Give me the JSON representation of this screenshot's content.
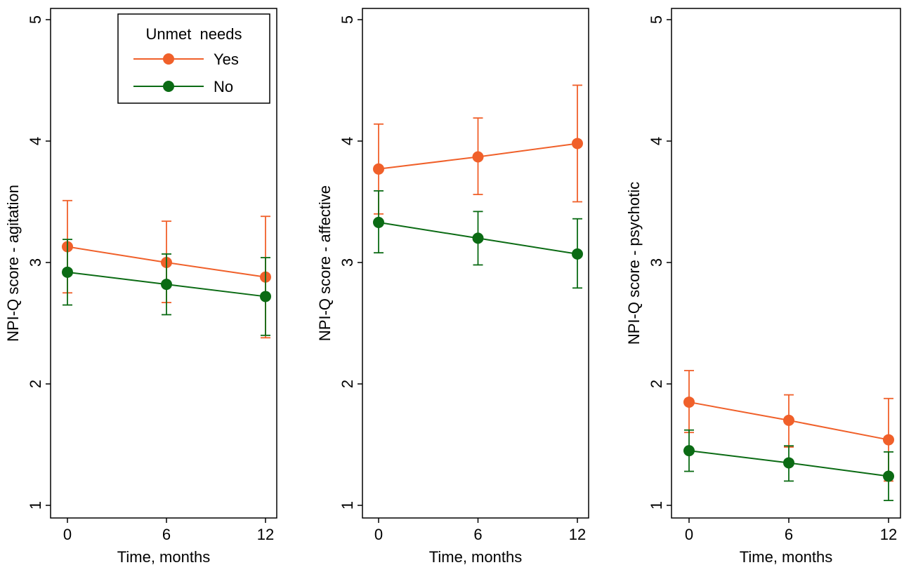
{
  "colors": {
    "yes": "#f0602a",
    "no": "#0b6b14",
    "axis": "#000000"
  },
  "legend": {
    "title": "Unmet  needs",
    "items": [
      {
        "label": "Yes",
        "series": "Yes"
      },
      {
        "label": "No",
        "series": "No"
      }
    ],
    "placement": "top-right of first panel"
  },
  "chart_data": [
    {
      "type": "line",
      "ylabel": "NPI-Q score - agitation",
      "xlabel": "Time, months",
      "x": [
        0,
        6,
        12
      ],
      "xticks": [
        "0",
        "6",
        "12"
      ],
      "yticks": [
        "1",
        "2",
        "3",
        "4",
        "5"
      ],
      "xlim": [
        0,
        12
      ],
      "ylim": [
        1,
        5
      ],
      "grid": false,
      "series": [
        {
          "name": "Yes",
          "values": [
            3.13,
            3.0,
            2.88
          ],
          "lower": [
            2.75,
            2.67,
            2.38
          ],
          "upper": [
            3.51,
            3.34,
            3.38
          ]
        },
        {
          "name": "No",
          "values": [
            2.92,
            2.82,
            2.72
          ],
          "lower": [
            2.65,
            2.57,
            2.4
          ],
          "upper": [
            3.19,
            3.07,
            3.04
          ]
        }
      ]
    },
    {
      "type": "line",
      "ylabel": "NPI-Q score - affective",
      "xlabel": "Time, months",
      "x": [
        0,
        6,
        12
      ],
      "xticks": [
        "0",
        "6",
        "12"
      ],
      "yticks": [
        "1",
        "2",
        "3",
        "4",
        "5"
      ],
      "xlim": [
        0,
        12
      ],
      "ylim": [
        1,
        5
      ],
      "grid": false,
      "series": [
        {
          "name": "Yes",
          "values": [
            3.77,
            3.87,
            3.98
          ],
          "lower": [
            3.4,
            3.56,
            3.5
          ],
          "upper": [
            4.14,
            4.19,
            4.46
          ]
        },
        {
          "name": "No",
          "values": [
            3.33,
            3.2,
            3.07
          ],
          "lower": [
            3.08,
            2.98,
            2.79
          ],
          "upper": [
            3.59,
            3.42,
            3.36
          ]
        }
      ]
    },
    {
      "type": "line",
      "ylabel": "NPI-Q score - psychotic",
      "xlabel": "Time, months",
      "x": [
        0,
        6,
        12
      ],
      "xticks": [
        "0",
        "6",
        "12"
      ],
      "yticks": [
        "1",
        "2",
        "3",
        "4",
        "5"
      ],
      "xlim": [
        0,
        12
      ],
      "ylim": [
        1,
        5
      ],
      "grid": false,
      "series": [
        {
          "name": "Yes",
          "values": [
            1.85,
            1.7,
            1.54
          ],
          "lower": [
            1.6,
            1.48,
            1.2
          ],
          "upper": [
            2.11,
            1.91,
            1.88
          ]
        },
        {
          "name": "No",
          "values": [
            1.45,
            1.35,
            1.24
          ],
          "lower": [
            1.28,
            1.2,
            1.04
          ],
          "upper": [
            1.62,
            1.49,
            1.44
          ]
        }
      ]
    }
  ]
}
